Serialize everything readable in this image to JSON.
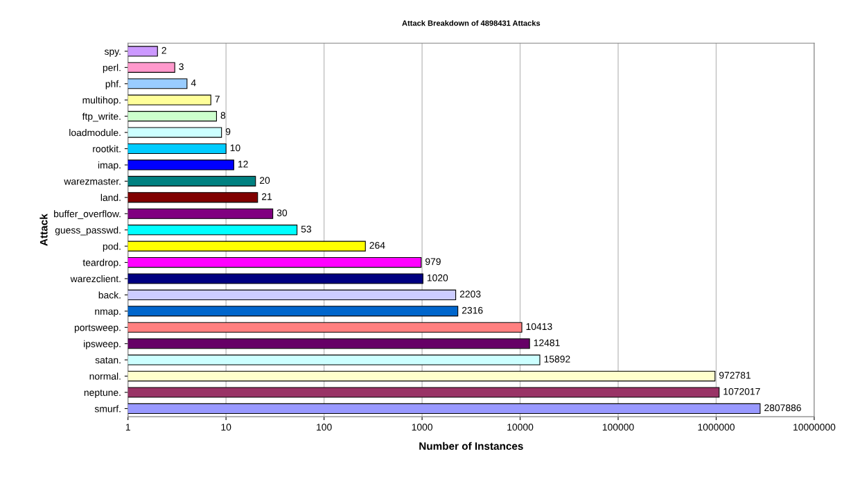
{
  "chart_data": {
    "type": "bar",
    "orientation": "horizontal",
    "title": "Attack Breakdown of 4898431 Attacks",
    "xlabel": "Number of Instances",
    "ylabel": "Attack",
    "categories": [
      "spy.",
      "perl.",
      "phf.",
      "multihop.",
      "ftp_write.",
      "loadmodule.",
      "rootkit.",
      "imap.",
      "warezmaster.",
      "land.",
      "buffer_overflow.",
      "guess_passwd.",
      "pod.",
      "teardrop.",
      "warezclient.",
      "back.",
      "nmap.",
      "portsweep.",
      "ipsweep.",
      "satan.",
      "normal.",
      "neptune.",
      "smurf."
    ],
    "values": [
      2,
      3,
      4,
      7,
      8,
      9,
      10,
      12,
      20,
      21,
      30,
      53,
      264,
      979,
      1020,
      2203,
      2316,
      10413,
      12481,
      15892,
      972781,
      1072017,
      2807886
    ],
    "colors": [
      "#cc99ff",
      "#ff99cc",
      "#99ccff",
      "#ffff99",
      "#ccffcc",
      "#ccffff",
      "#00ccff",
      "#0000ff",
      "#008080",
      "#800000",
      "#800080",
      "#00ffff",
      "#ffff00",
      "#ff00ff",
      "#000080",
      "#ccccff",
      "#0066cc",
      "#ff8080",
      "#660066",
      "#ccffff",
      "#ffffcc",
      "#993366",
      "#9999ff"
    ],
    "log": "x",
    "xlim": [
      1,
      10000000
    ],
    "xticks": [
      1,
      10,
      100,
      1000,
      10000,
      100000,
      1000000,
      10000000
    ],
    "grid": "x",
    "data_labels": true
  }
}
